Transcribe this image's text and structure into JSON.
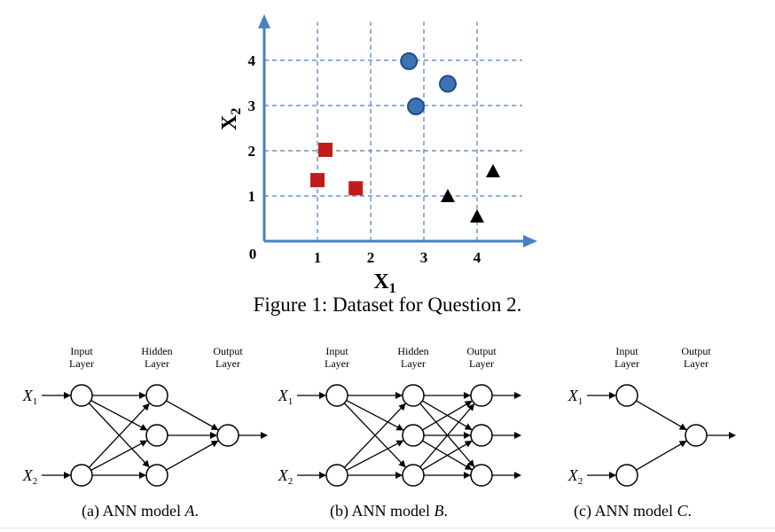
{
  "chart_data": {
    "type": "scatter",
    "title": "",
    "xlabel": "X",
    "xlabel_sub": "1",
    "ylabel": "X",
    "ylabel_sub": "2",
    "origin_label": "0",
    "xticks": [
      "1",
      "2",
      "3",
      "4"
    ],
    "yticks": [
      "1",
      "2",
      "3",
      "4"
    ],
    "xlim": [
      0,
      4.9
    ],
    "ylim": [
      0,
      5.0
    ],
    "grid": true,
    "series": [
      {
        "marker": "circle",
        "color": "#3d72b5",
        "points": [
          [
            2.72,
            3.98
          ],
          [
            3.45,
            3.48
          ],
          [
            2.85,
            2.98
          ]
        ]
      },
      {
        "marker": "square",
        "color": "#c01b1b",
        "points": [
          [
            1.15,
            2.02
          ],
          [
            1.0,
            1.35
          ],
          [
            1.72,
            1.17
          ]
        ]
      },
      {
        "marker": "triangle",
        "color": "#000000",
        "points": [
          [
            3.45,
            1.0
          ],
          [
            4.3,
            1.55
          ],
          [
            4.0,
            0.55
          ]
        ]
      }
    ],
    "axis_color": "#4a7fc1",
    "grid_color": "#4a7fc1"
  },
  "figure_caption": "Figure 1: Dataset for Question 2.",
  "models": [
    {
      "layer_labels": [
        [
          "Input",
          "Layer"
        ],
        [
          "Hidden",
          "Layer"
        ],
        [
          "Output",
          "Layer"
        ]
      ],
      "inputs": [
        [
          "X",
          "1"
        ],
        [
          "X",
          "2"
        ]
      ],
      "caption_prefix": "(a)  ANN model ",
      "caption_var": "A",
      "caption_suffix": "."
    },
    {
      "layer_labels": [
        [
          "Input",
          "Layer"
        ],
        [
          "Hidden",
          "Layer"
        ],
        [
          "Output",
          "Layer"
        ]
      ],
      "inputs": [
        [
          "X",
          "1"
        ],
        [
          "X",
          "2"
        ]
      ],
      "caption_prefix": "(b)  ANN model ",
      "caption_var": "B",
      "caption_suffix": "."
    },
    {
      "layer_labels": [
        [
          "Input",
          "Layer"
        ],
        [
          "Output",
          "Layer"
        ]
      ],
      "inputs": [
        [
          "X",
          "1"
        ],
        [
          "X",
          "2"
        ]
      ],
      "caption_prefix": "(c)  ANN model ",
      "caption_var": "C",
      "caption_suffix": "."
    }
  ]
}
